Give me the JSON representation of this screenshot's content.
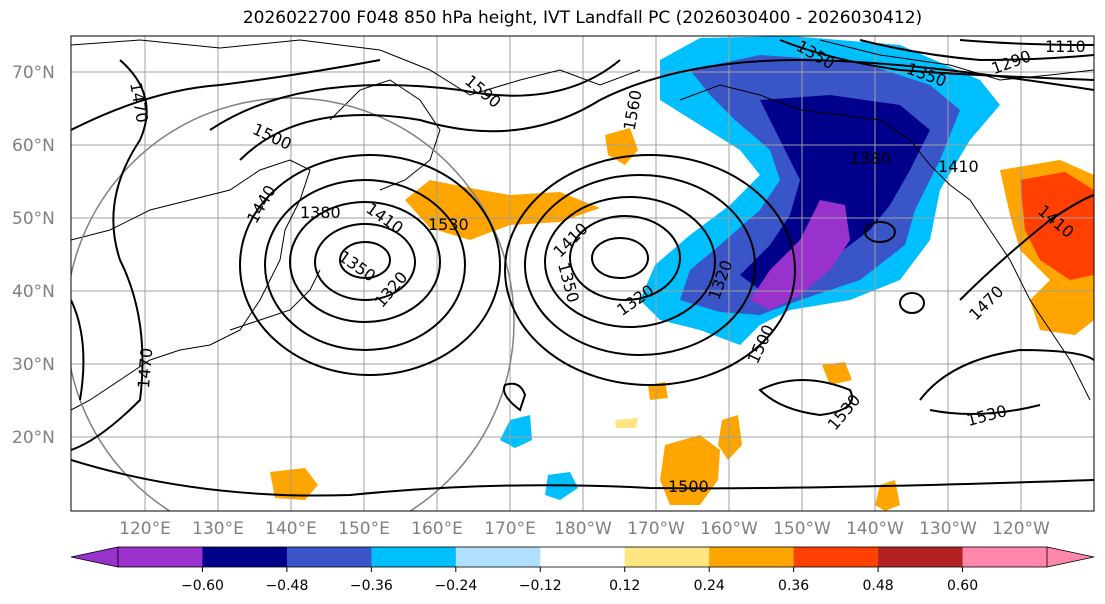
{
  "title": "2026022700 F048 850 hPa height, IVT Landfall PC (2026030400 - 2026030412)",
  "lat_labels": [
    "70°N",
    "60°N",
    "50°N",
    "40°N",
    "30°N",
    "20°N"
  ],
  "lon_labels": [
    "120°E",
    "130°E",
    "140°E",
    "150°E",
    "160°E",
    "170°E",
    "180°W",
    "170°W",
    "160°W",
    "150°W",
    "140°W",
    "130°W",
    "120°W"
  ],
  "colorbar": {
    "colors": [
      "#9932cc",
      "#00008b",
      "#3a55c8",
      "#00bfff",
      "#b0e0ff",
      "#ffffff",
      "#ffe680",
      "#ffa500",
      "#ff4000",
      "#b22222",
      "#ff88aa"
    ],
    "ticks": [
      "−0.60",
      "−0.48",
      "−0.36",
      "−0.24",
      "−0.12",
      "0.12",
      "0.24",
      "0.36",
      "0.48",
      "0.60"
    ],
    "under_color": "#9932cc",
    "over_color": "#ff88aa"
  },
  "contour_labels": [
    "1470",
    "1500",
    "1440",
    "1380",
    "1410",
    "1350",
    "1320",
    "1590",
    "1530",
    "1560",
    "1410",
    "1350",
    "1320",
    "1380",
    "1350",
    "1320",
    "1410",
    "1500",
    "1530",
    "1470",
    "1530",
    "1500",
    "1470",
    "1410",
    "1110",
    "1290",
    "1350"
  ],
  "shading_colors": {
    "strong_negative": "#9932cc",
    "negative": "#00008b",
    "mid_negative": "#3a55c8",
    "weak_negative": "#00bfff",
    "weak_positive": "#ffe680",
    "positive": "#ffa500",
    "strong_positive": "#ff4000"
  }
}
